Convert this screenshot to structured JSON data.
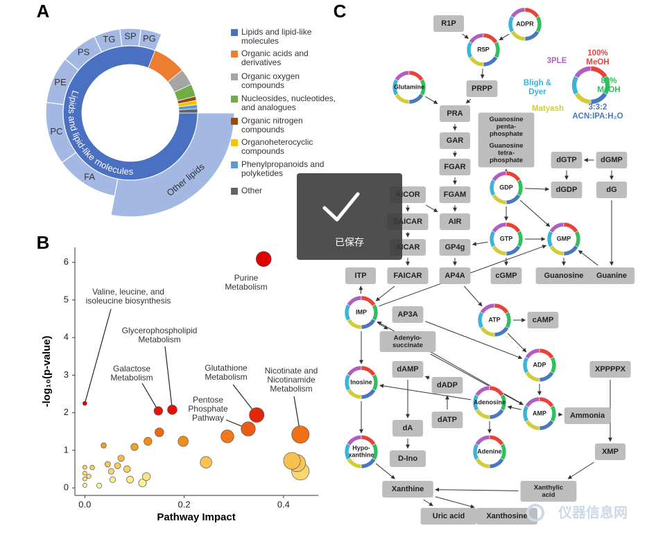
{
  "panels": [
    "A",
    "B",
    "C"
  ],
  "chart_data": [
    {
      "type": "sunburst",
      "categories": [
        "Lipids and lipid-like molecules",
        "Organic acids and derivatives",
        "Organic oxygen compounds",
        "Nucleosides, nucleotides, and analogues",
        "Organic nitrogen compounds",
        "Organoheterocyclic compounds",
        "Phenylpropanoids and polyketides",
        "Other"
      ],
      "values": [
        81,
        8,
        4,
        3,
        1,
        1,
        1,
        1
      ],
      "colors": [
        "#4a70c2",
        "#ed7d31",
        "#a5a5a5",
        "#70ad47",
        "#9e480e",
        "#ffc000",
        "#5b9bd5",
        "#636363"
      ],
      "outer": {
        "categories": [
          "Other lipids",
          "FA",
          "PC",
          "PE",
          "PS",
          "TG",
          "SP",
          "PG"
        ],
        "values": [
          28,
          12,
          12,
          9,
          7,
          5,
          4,
          4
        ],
        "color": "#a3b9e4"
      }
    },
    {
      "type": "scatter",
      "x": [
        0.36,
        0,
        0.176,
        0.148,
        0.346,
        0.329,
        0.434,
        0.15,
        0.127,
        0.198,
        0.287,
        0.1,
        0.038,
        0.073,
        0.046,
        0.244,
        0.417,
        0.427,
        0.434,
        0.066,
        0.085,
        0.053,
        0.091,
        0.124,
        0.116,
        0.056,
        0.029,
        0,
        0,
        0,
        0.008,
        0.015,
        0
      ],
      "y": [
        6.09,
        2.25,
        2.08,
        2.05,
        1.94,
        1.57,
        1.42,
        1.48,
        1.24,
        1.24,
        1.37,
        1.09,
        1.13,
        0.79,
        0.63,
        0.68,
        0.72,
        0.66,
        0.44,
        0.59,
        0.5,
        0.44,
        0.22,
        0.3,
        0.13,
        0.22,
        0.06,
        0.55,
        0.39,
        0.24,
        0.31,
        0.54,
        0.07
      ],
      "x_label": "Pathway Impact",
      "y_label": "-log₁₀(p-value)",
      "xlim": [
        -0.02,
        0.47
      ],
      "ylim": [
        -0.2,
        6.4
      ],
      "xticks": [
        {
          "value": 0,
          "label": "0.0"
        },
        0.2,
        0.4
      ],
      "yticks": [
        0,
        1,
        2,
        3,
        4,
        5,
        6
      ],
      "color_scale": [
        "#fffca8",
        "#f5a020",
        "#e00000"
      ],
      "annotations": [
        [
          "Purine",
          "Metabolism"
        ],
        [
          "Valine, leucine, and",
          "isoleucine biosynthesis"
        ],
        [
          "Glycerophospholipid",
          "Metabolism"
        ],
        [
          "Galactose",
          "Metabolism"
        ],
        [
          "Glutathione",
          "Metabolism"
        ],
        [
          "Pentose",
          "Phosphate",
          "Pathway"
        ],
        [
          "Nicotinate and",
          "Nicotinamide",
          "Metabolism"
        ]
      ]
    }
  ],
  "diagram": {
    "nodes": [
      {
        "lines": [
          "R1P"
        ],
        "shape": "box"
      },
      {
        "lines": [
          "ADPR"
        ],
        "shape": "ring"
      },
      {
        "lines": [
          "R5P"
        ],
        "shape": "ring"
      },
      {
        "lines": [
          "Glutamine"
        ],
        "shape": "ring"
      },
      {
        "lines": [
          "PRPP"
        ],
        "shape": "box"
      },
      {
        "lines": [
          "PRA"
        ],
        "shape": "box"
      },
      {
        "lines": [
          "GAR"
        ],
        "shape": "box"
      },
      {
        "lines": [
          "FGAR"
        ],
        "shape": "box"
      },
      {
        "lines": [
          "FGAM"
        ],
        "shape": "box"
      },
      {
        "lines": [
          "AIR"
        ],
        "shape": "box"
      },
      {
        "lines": [
          "AICOR"
        ],
        "shape": "box"
      },
      {
        "lines": [
          "SAICAR"
        ],
        "shape": "box"
      },
      {
        "lines": [
          "AICAR"
        ],
        "shape": "box"
      },
      {
        "lines": [
          "FAICAR"
        ],
        "shape": "box"
      },
      {
        "lines": [
          "ITP"
        ],
        "shape": "box"
      },
      {
        "lines": [
          "IMP"
        ],
        "shape": "ring"
      },
      {
        "lines": [
          "AP4A"
        ],
        "shape": "box"
      },
      {
        "lines": [
          "GP4g"
        ],
        "shape": "box"
      },
      {
        "lines": [
          "GTP"
        ],
        "shape": "ring"
      },
      {
        "lines": [
          "cGMP"
        ],
        "shape": "box"
      },
      {
        "lines": [
          "GDP"
        ],
        "shape": "ring"
      },
      {
        "lines": [
          "Guanosine",
          "penta-",
          "phosphate"
        ],
        "shape": "box"
      },
      {
        "lines": [
          "Guanosine",
          "tetra-",
          "phosphate"
        ],
        "shape": "box"
      },
      {
        "lines": [
          "dGTP"
        ],
        "shape": "box"
      },
      {
        "lines": [
          "dGMP"
        ],
        "shape": "box"
      },
      {
        "lines": [
          "dGDP"
        ],
        "shape": "box"
      },
      {
        "lines": [
          "dG"
        ],
        "shape": "box"
      },
      {
        "lines": [
          "GMP"
        ],
        "shape": "ring"
      },
      {
        "lines": [
          "Guanosine"
        ],
        "shape": "box"
      },
      {
        "lines": [
          "Guanine"
        ],
        "shape": "box"
      },
      {
        "lines": [
          "AP3A"
        ],
        "shape": "box"
      },
      {
        "lines": [
          "Adenylo-",
          "succinate"
        ],
        "shape": "box"
      },
      {
        "lines": [
          "ATP"
        ],
        "shape": "ring"
      },
      {
        "lines": [
          "cAMP"
        ],
        "shape": "box"
      },
      {
        "lines": [
          "ADP"
        ],
        "shape": "ring"
      },
      {
        "lines": [
          "dAMP"
        ],
        "shape": "box"
      },
      {
        "lines": [
          "dADP"
        ],
        "shape": "box"
      },
      {
        "lines": [
          "dATP"
        ],
        "shape": "box"
      },
      {
        "lines": [
          "Inosine"
        ],
        "shape": "ring"
      },
      {
        "lines": [
          "Adenosine"
        ],
        "shape": "ring"
      },
      {
        "lines": [
          "AMP"
        ],
        "shape": "ring"
      },
      {
        "lines": [
          "Ammonia"
        ],
        "shape": "box"
      },
      {
        "lines": [
          "XPPPPX"
        ],
        "shape": "box"
      },
      {
        "lines": [
          "XMP"
        ],
        "shape": "box"
      },
      {
        "lines": [
          "dA"
        ],
        "shape": "box"
      },
      {
        "lines": [
          "D-Ino"
        ],
        "shape": "box"
      },
      {
        "lines": [
          "Hypo-",
          "xanthine"
        ],
        "shape": "ring"
      },
      {
        "lines": [
          "Adenine"
        ],
        "shape": "ring"
      },
      {
        "lines": [
          "Xanthine"
        ],
        "shape": "box"
      },
      {
        "lines": [
          "Xanthylic",
          "acid"
        ],
        "shape": "box"
      },
      {
        "lines": [
          "Uric acid"
        ],
        "shape": "box"
      },
      {
        "lines": [
          "Xanthosine"
        ],
        "shape": "box"
      }
    ],
    "legend": [
      {
        "lines": [
          "3PLE"
        ],
        "color": "#b05fc0"
      },
      {
        "lines": [
          "100%",
          "MeOH"
        ],
        "color": "#e8423a"
      },
      {
        "lines": [
          "80%",
          "MeOH"
        ],
        "color": "#2fbf5c"
      },
      {
        "lines": [
          "3:3:2",
          "ACN:IPA:H₂O"
        ],
        "color": "#4a78c0"
      },
      {
        "lines": [
          "Matyash"
        ],
        "color": "#d2cc3a"
      },
      {
        "lines": [
          "Bligh &",
          "Dyer"
        ],
        "color": "#3bb4d8"
      }
    ]
  },
  "overlay": {
    "text": "已保存"
  },
  "watermark": "仪器信息网"
}
